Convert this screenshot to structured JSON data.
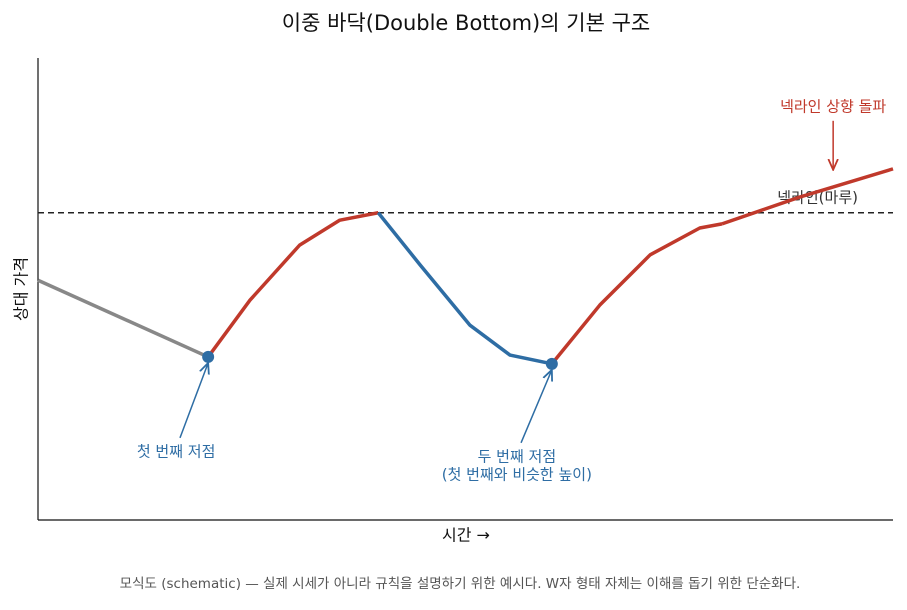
{
  "chart_data": {
    "type": "line",
    "title": "이중 바닥(Double Bottom)의 기본 구조",
    "x_label": "시간 →",
    "y_label": "상대 가격",
    "xlim": [
      0,
      100
    ],
    "ylim": [
      0,
      100
    ],
    "series": [
      {
        "color": "#888888",
        "x": [
          0,
          19.9
        ],
        "values": [
          51.9,
          35.3
        ]
      },
      {
        "color": "#c0392b",
        "x": [
          19.9,
          24.8,
          30.6,
          35.3,
          39.8
        ],
        "values": [
          35.3,
          47.6,
          59.5,
          64.9,
          66.5
        ]
      },
      {
        "color": "#2e6da4",
        "x": [
          39.8,
          44.7,
          50.5,
          55.2,
          60.1
        ],
        "values": [
          66.5,
          55.2,
          42.2,
          35.7,
          33.8
        ]
      },
      {
        "color": "#c0392b",
        "x": [
          60.1,
          65.7,
          71.6,
          77.4,
          80.0
        ],
        "values": [
          33.8,
          46.5,
          57.4,
          63.2,
          64.1
        ]
      },
      {
        "color": "#c0392b",
        "x": [
          80.0,
          89.1,
          100
        ],
        "values": [
          64.1,
          69.9,
          76.0
        ]
      }
    ],
    "points": {
      "color": "#2e6da4",
      "x": [
        19.9,
        60.1
      ],
      "values": [
        35.3,
        33.8
      ]
    },
    "neckline": {
      "value": 66.5,
      "label": "넥라인(마루)"
    },
    "annotations": [
      {
        "lines": [
          "첫 번째 저점"
        ],
        "color": "#2e6da4",
        "x": 19.9,
        "y": 35.3
      },
      {
        "lines": [
          "두 번째 저점",
          "(첫 번째와 비슷한 높이)"
        ],
        "color": "#2e6da4",
        "x": 60.1,
        "y": 33.8
      },
      {
        "lines": [
          "넥라인 상향 돌파"
        ],
        "color": "#c0392b",
        "x": 93.0,
        "y": 75.8
      }
    ],
    "footnote": "모식도 (schematic) — 실제 시세가 아니라 규칙을 설명하기 위한 예시다. W자 형태 자체는 이해를 돕기 위한 단순화다."
  }
}
